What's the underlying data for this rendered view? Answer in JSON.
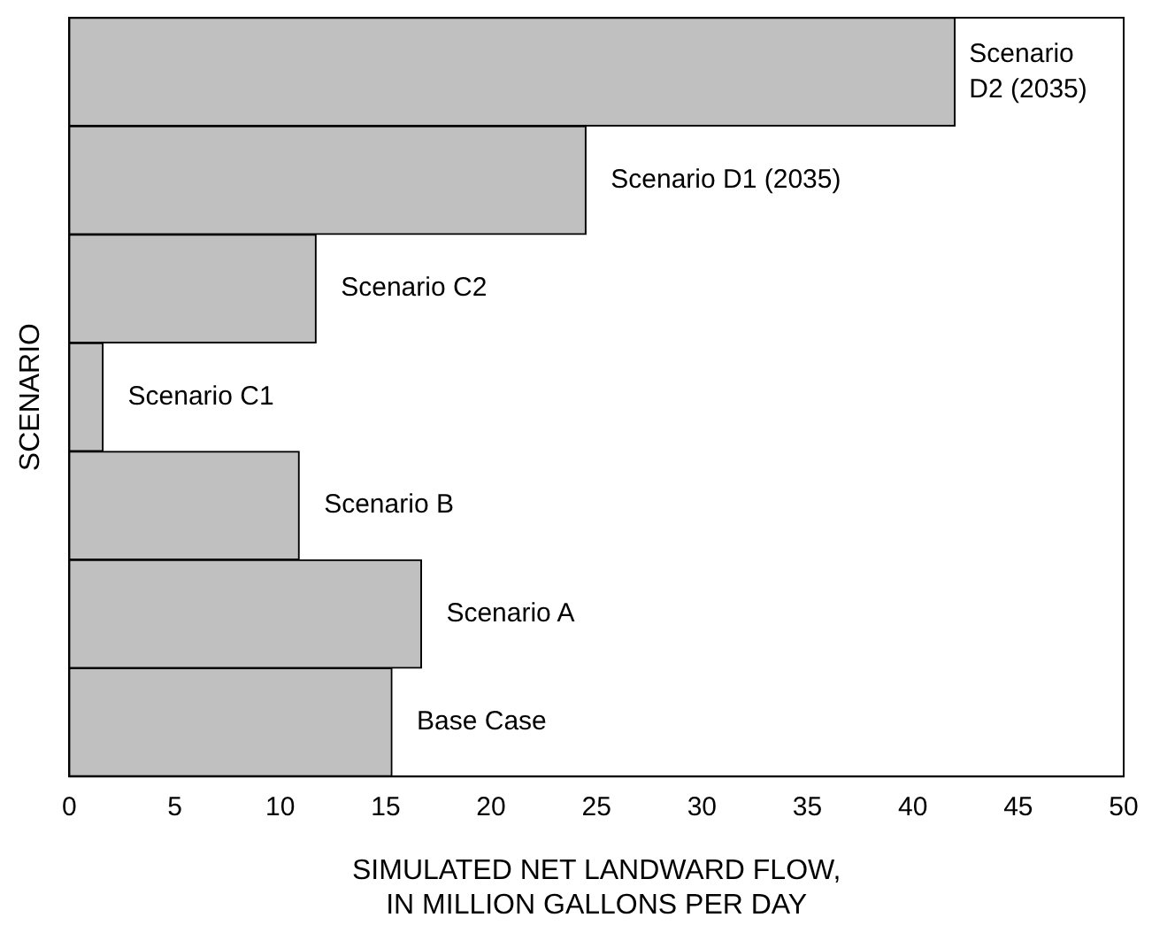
{
  "chart_data": {
    "type": "bar",
    "orientation": "horizontal",
    "categories": [
      "Scenario D2 (2035)",
      "Scenario D1 (2035)",
      "Scenario C2",
      "Scenario C1",
      "Scenario B",
      "Scenario A",
      "Base Case"
    ],
    "values": [
      42.0,
      24.5,
      11.7,
      1.6,
      10.9,
      16.7,
      15.3
    ],
    "color": "#c0c0c0",
    "xlim": [
      0,
      50
    ],
    "xticks": [
      0,
      5,
      10,
      15,
      20,
      25,
      30,
      35,
      40,
      45,
      50
    ],
    "xlabel": "SIMULATED NET LANDWARD FLOW,\nIN MILLION GALLONS PER DAY",
    "ylabel": "SCENARIO",
    "tick_labels": "x",
    "grid": false,
    "legend": false
  }
}
